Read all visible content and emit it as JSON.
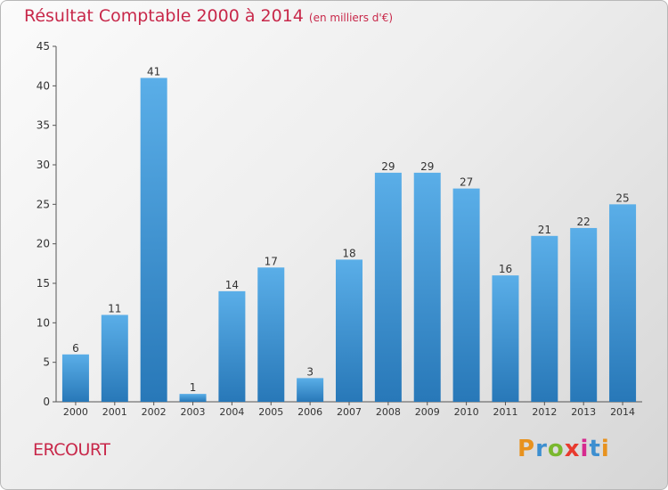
{
  "title": "Résultat Comptable 2000 à 2014",
  "subtitle": "(en milliers d'€)",
  "commune": "ERCOURT",
  "logo": {
    "text": "Proxiti",
    "letter_colors": [
      "#e8921e",
      "#3d8fd0",
      "#7ab82e",
      "#e83a2e",
      "#d62a8e",
      "#3d8fd0",
      "#e8921e"
    ]
  },
  "colors": {
    "title": "#c8284a",
    "bar_light": "#5aaee8",
    "bar_dark": "#2878b8",
    "axis": "#555555"
  },
  "chart_data": {
    "type": "bar",
    "categories": [
      "2000",
      "2001",
      "2002",
      "2003",
      "2004",
      "2005",
      "2006",
      "2007",
      "2008",
      "2009",
      "2010",
      "2011",
      "2012",
      "2013",
      "2014"
    ],
    "values": [
      6,
      11,
      41,
      1,
      14,
      17,
      3,
      18,
      29,
      29,
      27,
      16,
      21,
      22,
      25
    ],
    "ylim": [
      0,
      45
    ],
    "yticks": [
      0,
      5,
      10,
      15,
      20,
      25,
      30,
      35,
      40,
      45
    ],
    "grid": false,
    "data_labels": true
  }
}
